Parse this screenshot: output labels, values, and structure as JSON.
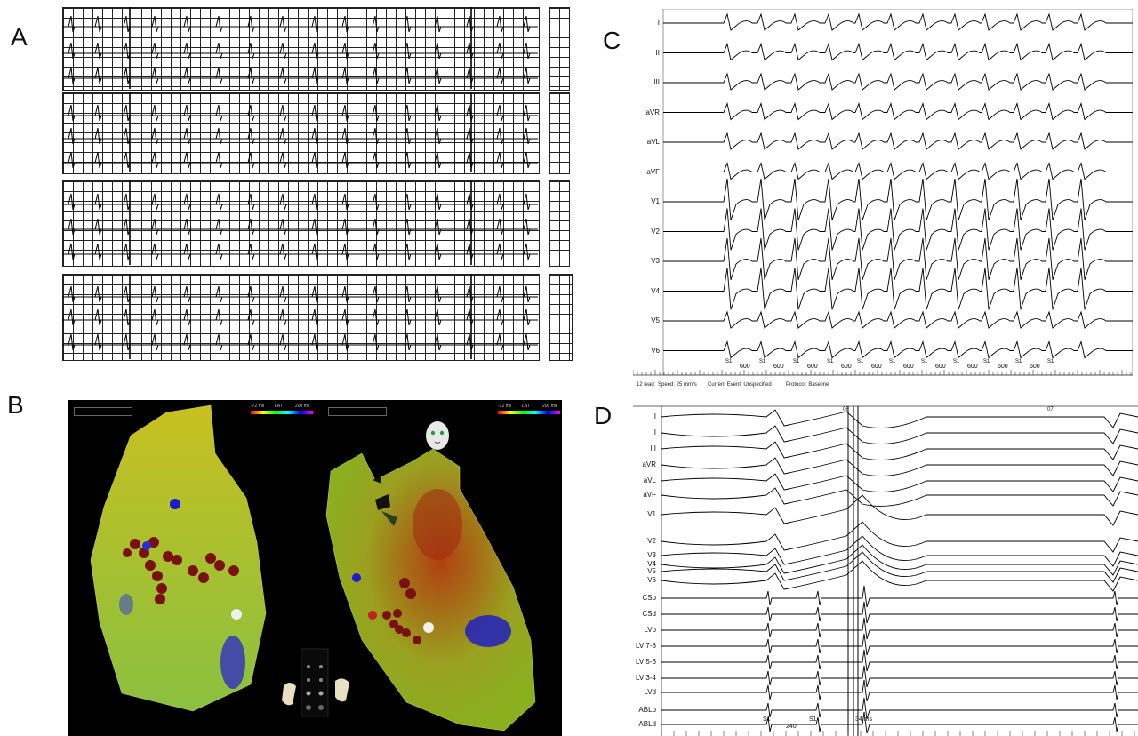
{
  "panels": {
    "A": "A",
    "B": "B",
    "C": "C",
    "D": "D"
  },
  "panel_c": {
    "leads": [
      "I",
      "II",
      "III",
      "aVR",
      "aVL",
      "aVF",
      "V1",
      "V2",
      "V3",
      "V4",
      "V5",
      "V6"
    ],
    "s1_label": "S1",
    "interval_label": "600",
    "footer": {
      "lead_mode": "12 lead",
      "speed": "Speed: 25 mm/s",
      "event": "Current Event: Unspecified",
      "protocol": "Protocol: Baseline"
    }
  },
  "panel_d": {
    "leads": [
      "I",
      "II",
      "III",
      "aVR",
      "aVL",
      "aVF",
      "V1",
      "V2",
      "V3",
      "V4",
      "V5",
      "V6",
      "CSp",
      "CSd",
      "LVp",
      "LV 7-8",
      "LV 5-6",
      "LV 3-4",
      "LVd",
      "ABLp",
      "ABLd"
    ],
    "marker_06": "06",
    "marker_07": "07",
    "s_label": "S1",
    "s_interval": "240",
    "ms_label": "34 ms"
  },
  "panel_b": {
    "map_legend_left": "LAT",
    "map_range_min": "-72 ms",
    "map_range_max": "200 ms",
    "icon_names": [
      "face-orientation-icon",
      "heart-orientation-icon"
    ]
  },
  "colors": {
    "ecg_grid": "#222222",
    "map_background": "#000000",
    "lesion_red": "#8b1010",
    "marker_blue": "#1a1ad0"
  }
}
